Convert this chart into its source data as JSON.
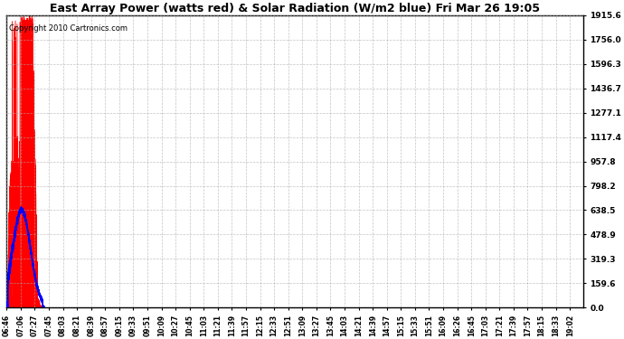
{
  "title": "East Array Power (watts red) & Solar Radiation (W/m2 blue) Fri Mar 26 19:05",
  "copyright": "Copyright 2010 Cartronics.com",
  "yticks": [
    0.0,
    159.6,
    319.3,
    478.9,
    638.5,
    798.2,
    957.8,
    1117.4,
    1277.1,
    1436.7,
    1596.3,
    1756.0,
    1915.6
  ],
  "ymax": 1915.6,
  "background_color": "#ffffff",
  "red_color": "#ff0000",
  "blue_color": "#0000ff",
  "x_labels": [
    "06:46",
    "07:06",
    "07:27",
    "07:45",
    "08:03",
    "08:21",
    "08:39",
    "08:57",
    "09:15",
    "09:33",
    "09:51",
    "10:09",
    "10:27",
    "10:45",
    "11:03",
    "11:21",
    "11:39",
    "11:57",
    "12:15",
    "12:33",
    "12:51",
    "13:09",
    "13:27",
    "13:45",
    "14:03",
    "14:21",
    "14:39",
    "14:57",
    "15:15",
    "15:33",
    "15:51",
    "16:09",
    "16:26",
    "16:45",
    "17:03",
    "17:21",
    "17:39",
    "17:57",
    "18:15",
    "18:33",
    "19:02"
  ],
  "n_labels": 41,
  "pts_per_label": 15
}
